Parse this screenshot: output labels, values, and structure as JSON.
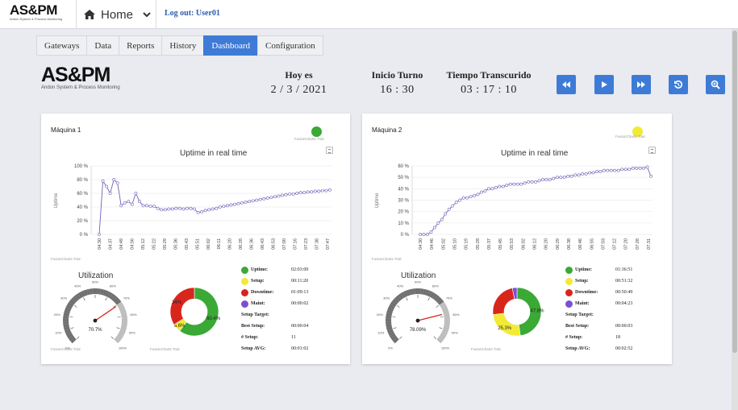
{
  "topbar": {
    "brand_big": "AS&PM",
    "brand_small": "Andon System & Process Monitoring",
    "home_label": "Home",
    "logout": "Log out: User01"
  },
  "tabs": [
    {
      "label": "Gateways",
      "active": false
    },
    {
      "label": "Data",
      "active": false
    },
    {
      "label": "Reports",
      "active": false
    },
    {
      "label": "History",
      "active": false
    },
    {
      "label": "Dashboard",
      "active": true
    },
    {
      "label": "Configuration",
      "active": false
    }
  ],
  "logo": {
    "big": "AS&PM",
    "small": "Andon System & Process Monitoring"
  },
  "header": {
    "date": {
      "label": "Hoy es",
      "value": "2 / 3 / 2021"
    },
    "shift": {
      "label": "Inicio Turno",
      "value": "16 : 30"
    },
    "elapsed": {
      "label": "Tiempo Transcurido",
      "value": "03 : 17 : 10"
    }
  },
  "controls": [
    {
      "name": "rewind-icon"
    },
    {
      "name": "play-icon"
    },
    {
      "name": "fast-forward-icon"
    },
    {
      "name": "reset-icon"
    },
    {
      "name": "zoom-icon"
    }
  ],
  "colors": {
    "accent": "#3d7bd6",
    "uptime": "#3aa935",
    "setup": "#f2ea35",
    "downtime": "#d8261d",
    "maint": "#7b4fd1",
    "line": "#6e62b8"
  },
  "machines": [
    {
      "title": "Máquina 1",
      "status_color": "#3aa935",
      "trial": "FusionCharts Trial",
      "chart_title": "Uptime in real time",
      "y_axis_label": "Uptime",
      "y_ticks": [
        "100 %",
        "80 %",
        "60 %",
        "40 %",
        "20 %",
        "0 %"
      ],
      "x_ticks": [
        "04:30",
        "04:37",
        "04:49",
        "04:56",
        "05:12",
        "05:22",
        "05:29",
        "05:36",
        "05:43",
        "05:51",
        "06:02",
        "06:11",
        "06:20",
        "06:28",
        "06:36",
        "06:43",
        "06:53",
        "07:00",
        "07:16",
        "07:23",
        "07:38",
        "07:47"
      ],
      "util_title": "Utilization",
      "gauge_value": "70.7%",
      "gauge_pct": 70.7,
      "gauge_ticks": [
        "0%",
        "10%",
        "20%",
        "30%",
        "40%",
        "50%",
        "60%",
        "70%",
        "80%",
        "90%",
        "100%"
      ],
      "pie_labels": {
        "uptime": "60.4%",
        "setup": "5.6%",
        "downtime": "34%"
      },
      "pie": [
        60.4,
        5.6,
        34.0,
        0.0
      ],
      "stats": [
        {
          "label": "Uptime:",
          "value": "02:03:00",
          "dot": "uptime"
        },
        {
          "label": "Setup:",
          "value": "00:11:20",
          "dot": "setup"
        },
        {
          "label": "Downtime:",
          "value": "01:09:13",
          "dot": "downtime"
        },
        {
          "label": "Maint:",
          "value": "00:00:02",
          "dot": "maint"
        },
        {
          "label": "Setup Target:",
          "value": "",
          "dot": ""
        },
        {
          "label": "Best Setup:",
          "value": "00:00:04",
          "dot": ""
        },
        {
          "label": "# Setup:",
          "value": "11",
          "dot": ""
        },
        {
          "label": "Setup AVG:",
          "value": "00:01:02",
          "dot": ""
        }
      ],
      "ymax": 100,
      "series": [
        0,
        78,
        70,
        60,
        80,
        75,
        42,
        46,
        48,
        44,
        60,
        48,
        42,
        42,
        41,
        41,
        38,
        36,
        36,
        37,
        37,
        38,
        38,
        37,
        38,
        38,
        37,
        32,
        33,
        35,
        36,
        37,
        38,
        40,
        41,
        42,
        43,
        44,
        45,
        46,
        47,
        48,
        49,
        50,
        51,
        52,
        53,
        54,
        55,
        56,
        57,
        58,
        59,
        59,
        60,
        61,
        61,
        62,
        62,
        63,
        63,
        64,
        64,
        65
      ]
    },
    {
      "title": "Máquina 2",
      "status_color": "#f2ea35",
      "trial": "FusionCharts Trial",
      "chart_title": "Uptime in real time",
      "y_axis_label": "Uptime",
      "y_ticks": [
        "60 %",
        "50 %",
        "40 %",
        "30 %",
        "20 %",
        "10 %",
        "0 %"
      ],
      "x_ticks": [
        "04:30",
        "04:46",
        "05:02",
        "05:10",
        "05:19",
        "05:28",
        "05:37",
        "05:45",
        "05:53",
        "06:02",
        "06:12",
        "06:20",
        "06:29",
        "06:38",
        "06:46",
        "06:55",
        "07:03",
        "07:12",
        "07:20",
        "07:28",
        "07:31"
      ],
      "util_title": "Utilization",
      "gauge_value": "78.09%",
      "gauge_pct": 78.09,
      "gauge_ticks": [
        "0%",
        "10%",
        "20%",
        "30%",
        "40%",
        "50%",
        "60%",
        "70%",
        "80%",
        "90%",
        "100%"
      ],
      "pie_labels": {
        "uptime": "47.8%",
        "setup": "25.3%",
        "downtime": "",
        "maint": ""
      },
      "pie": [
        47.8,
        25.3,
        23.8,
        3.1
      ],
      "stats": [
        {
          "label": "Uptime:",
          "value": "01:36:51",
          "dot": "uptime"
        },
        {
          "label": "Setup:",
          "value": "00:51:32",
          "dot": "setup"
        },
        {
          "label": "Downtime:",
          "value": "00:50:49",
          "dot": "downtime"
        },
        {
          "label": "Maint:",
          "value": "00:04:23",
          "dot": "maint"
        },
        {
          "label": "Setup Target:",
          "value": "",
          "dot": ""
        },
        {
          "label": "Best Setup:",
          "value": "00:00:03",
          "dot": ""
        },
        {
          "label": "# Setup:",
          "value": "18",
          "dot": ""
        },
        {
          "label": "Setup AVG:",
          "value": "00:02:52",
          "dot": ""
        }
      ],
      "ymax": 60,
      "series": [
        0,
        0,
        0,
        2,
        6,
        10,
        13,
        18,
        22,
        25,
        28,
        30,
        32,
        32,
        33,
        34,
        35,
        37,
        38,
        40,
        40,
        41,
        42,
        42,
        43,
        44,
        44,
        44,
        44,
        45,
        46,
        46,
        46,
        47,
        48,
        48,
        48,
        49,
        50,
        50,
        50,
        51,
        51,
        52,
        52,
        53,
        53,
        54,
        54,
        55,
        55,
        56,
        56,
        56,
        56,
        56,
        57,
        57,
        57,
        58,
        58,
        58,
        58,
        59,
        51
      ]
    }
  ]
}
